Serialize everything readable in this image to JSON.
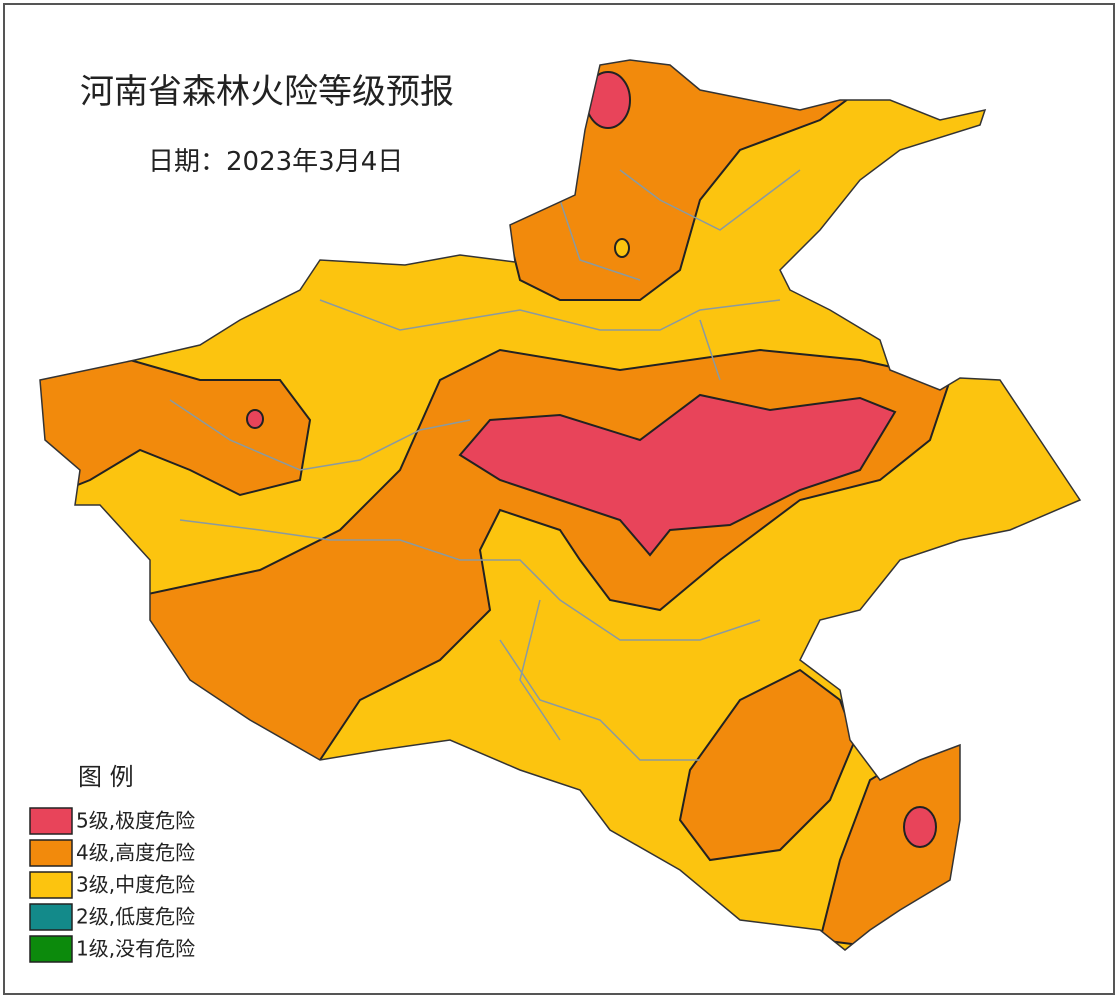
{
  "header": {
    "title": "河南省森林火险等级预报",
    "date": "日期：2023年3月4日"
  },
  "legend": {
    "title": "图 例",
    "items": [
      {
        "label": "5级,极度危险",
        "color": "#e8445a"
      },
      {
        "label": "4级,高度危险",
        "color": "#f28a0c"
      },
      {
        "label": "3级,中度危险",
        "color": "#fcc40f"
      },
      {
        "label": "2级,低度危险",
        "color": "#138a8a"
      },
      {
        "label": "1级,没有危险",
        "color": "#0c8a0c"
      }
    ]
  }
}
